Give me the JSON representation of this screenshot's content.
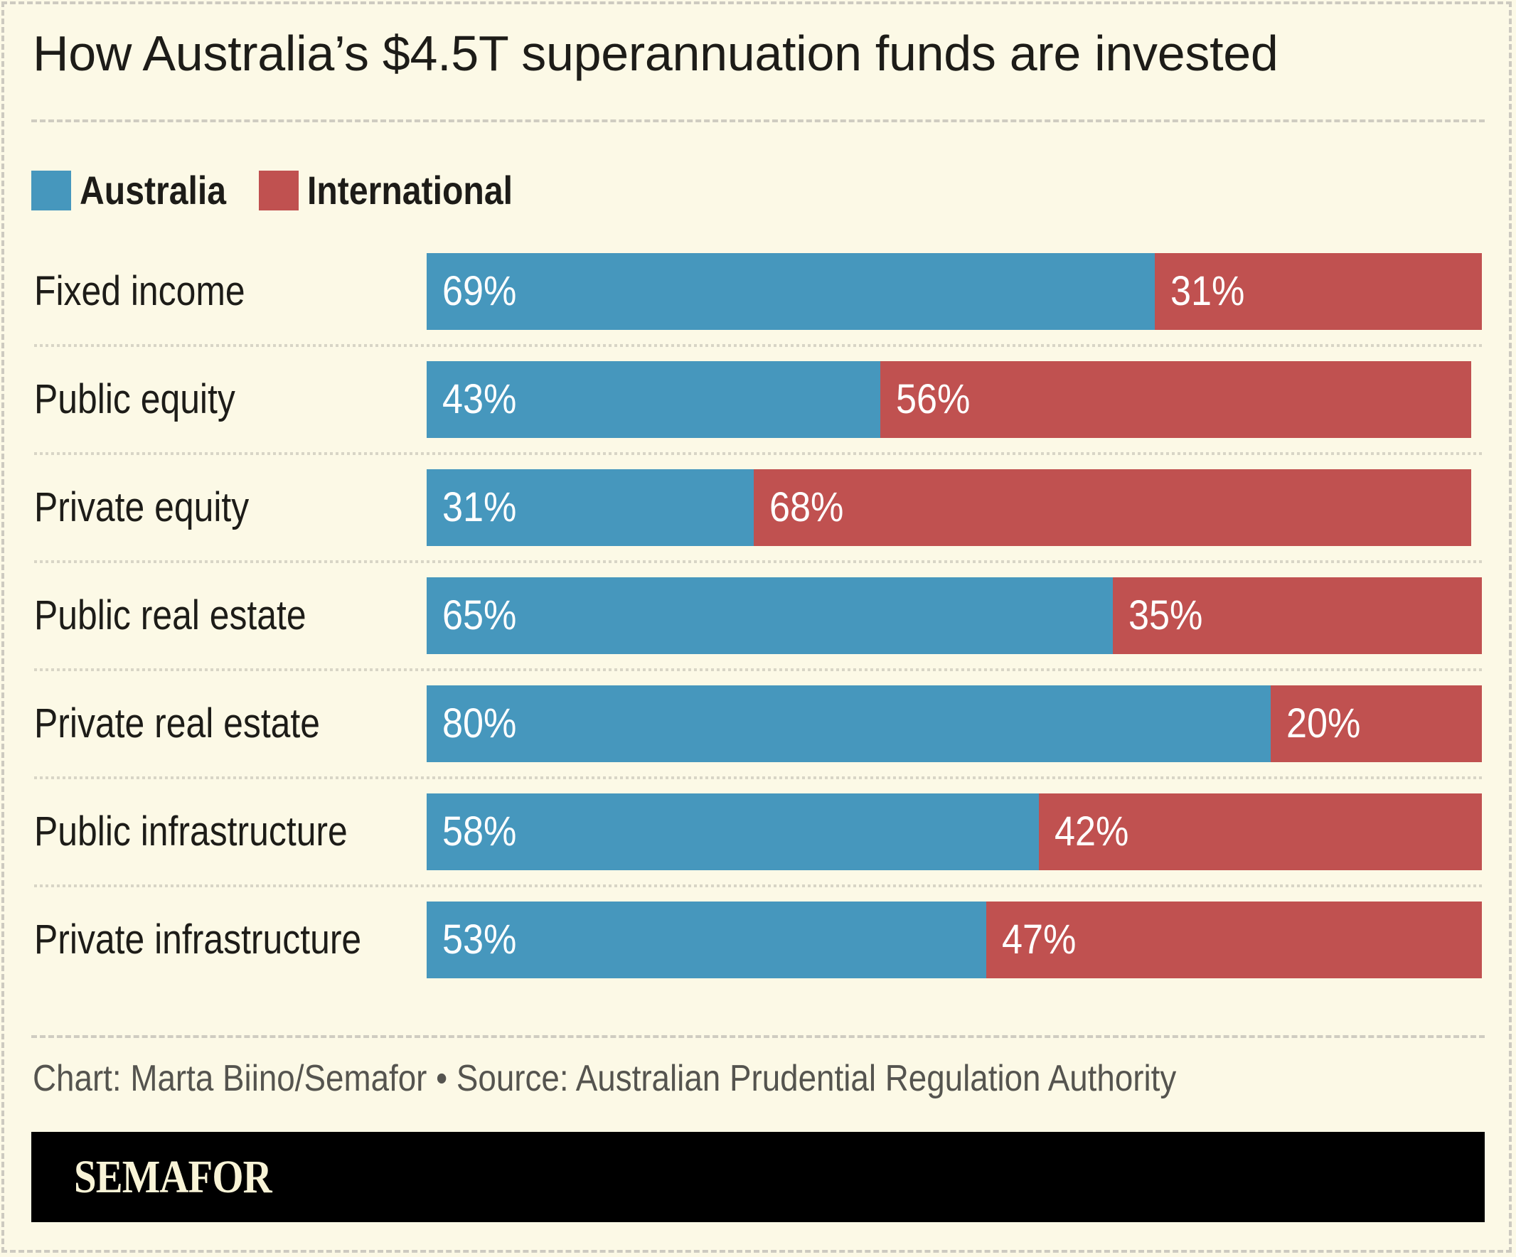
{
  "title": "How Australia’s $4.5T superannuation funds are invested",
  "legend": [
    {
      "label": "Australia",
      "color": "#4697bd"
    },
    {
      "label": "International",
      "color": "#c05150"
    }
  ],
  "rows": [
    {
      "label": "Fixed income",
      "australia": 69,
      "international": 31,
      "australia_label": "69%",
      "international_label": "31%"
    },
    {
      "label": "Public equity",
      "australia": 43,
      "international": 56,
      "australia_label": "43%",
      "international_label": "56%"
    },
    {
      "label": "Private equity",
      "australia": 31,
      "international": 68,
      "australia_label": "31%",
      "international_label": "68%"
    },
    {
      "label": "Public real estate",
      "australia": 65,
      "international": 35,
      "australia_label": "65%",
      "international_label": "35%"
    },
    {
      "label": "Private real estate",
      "australia": 80,
      "international": 20,
      "australia_label": "80%",
      "international_label": "20%"
    },
    {
      "label": "Public infrastructure",
      "australia": 58,
      "international": 42,
      "australia_label": "58%",
      "international_label": "42%"
    },
    {
      "label": "Private infrastructure",
      "australia": 53,
      "international": 47,
      "australia_label": "53%",
      "international_label": "47%"
    }
  ],
  "footer": {
    "credit": "Chart: Marta Biino/Semafor • Source: Australian Prudential Regulation Authority",
    "brand": "SEMAFOR"
  },
  "colors": {
    "background": "#fcf9e6",
    "australia": "#4697bd",
    "international": "#c05150",
    "brand_bar": "#000000"
  },
  "chart_data": {
    "type": "bar",
    "orientation": "horizontal",
    "stacked": true,
    "title": "How Australia’s $4.5T superannuation funds are invested",
    "categories": [
      "Fixed income",
      "Public equity",
      "Private equity",
      "Public real estate",
      "Private real estate",
      "Public infrastructure",
      "Private infrastructure"
    ],
    "series": [
      {
        "name": "Australia",
        "color": "#4697bd",
        "values": [
          69,
          43,
          31,
          65,
          80,
          58,
          53
        ]
      },
      {
        "name": "International",
        "color": "#c05150",
        "values": [
          31,
          56,
          68,
          35,
          20,
          42,
          47
        ]
      }
    ],
    "xlabel": "",
    "ylabel": "",
    "xlim": [
      0,
      100
    ],
    "unit": "%",
    "grid": false,
    "legend_position": "top-left",
    "data_labels": true,
    "source": "Chart: Marta Biino/Semafor • Source: Australian Prudential Regulation Authority"
  }
}
